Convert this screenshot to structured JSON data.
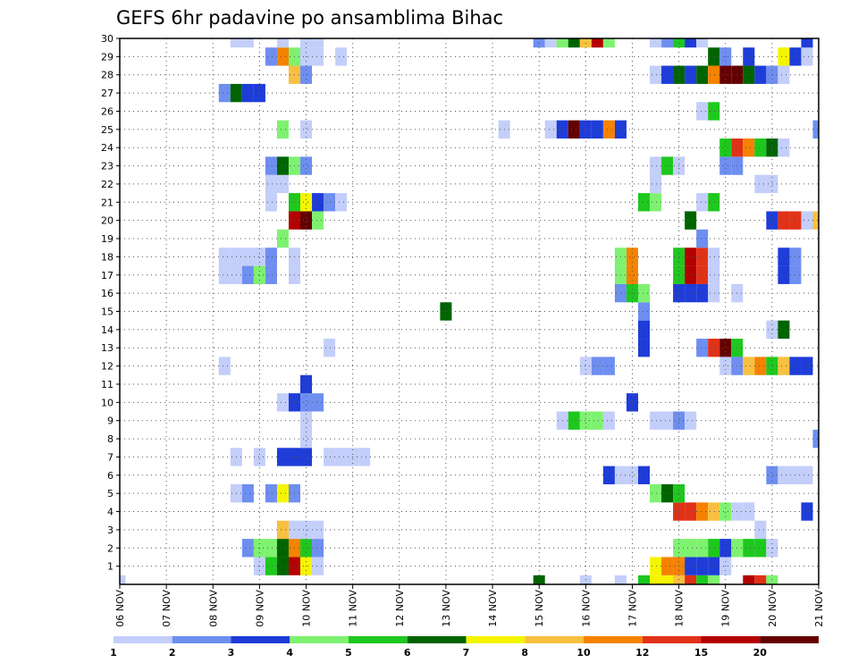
{
  "chart_data": {
    "type": "heatmap",
    "title": "GEFS 6hr padavine po ansamblima Bihac",
    "x_ticks": [
      "06 NOV",
      "07 NOV",
      "08 NOV",
      "09 NOV",
      "10 NOV",
      "11 NOV",
      "12 NOV",
      "13 NOV",
      "14 NOV",
      "15 NOV",
      "16 NOV",
      "17 NOV",
      "18 NOV",
      "19 NOV",
      "20 NOV",
      "21 NOV"
    ],
    "y_ticks": [
      1,
      2,
      3,
      4,
      5,
      6,
      7,
      8,
      9,
      10,
      11,
      12,
      13,
      14,
      15,
      16,
      17,
      18,
      19,
      20,
      21,
      22,
      23,
      24,
      25,
      26,
      27,
      28,
      29,
      30
    ],
    "x_range": [
      0,
      60
    ],
    "y_range": [
      0,
      30
    ],
    "steps_per_day": 4,
    "colorbar": {
      "colors": [
        "#c3cefa",
        "#6e8ef0",
        "#1e3cd8",
        "#7ef270",
        "#1ec81e",
        "#006400",
        "#f5f500",
        "#f8c040",
        "#f58200",
        "#e03218",
        "#b40000",
        "#640000"
      ],
      "labels": [
        "1",
        "2",
        "3",
        "4",
        "5",
        "6",
        "7",
        "8",
        "10",
        "12",
        "15",
        "20"
      ]
    },
    "series": [
      {
        "member": 0,
        "cells": [
          [
            0,
            1
          ],
          [
            36,
            6
          ],
          [
            40,
            1
          ],
          [
            43,
            1
          ],
          [
            45,
            5
          ],
          [
            46,
            7
          ],
          [
            47,
            7
          ],
          [
            48,
            8
          ],
          [
            49,
            10
          ],
          [
            50,
            5
          ],
          [
            51,
            4
          ],
          [
            54,
            11
          ],
          [
            55,
            10
          ],
          [
            56,
            4
          ]
        ]
      },
      {
        "member": 1,
        "cells": [
          [
            12,
            1
          ],
          [
            13,
            5
          ],
          [
            14,
            6
          ],
          [
            15,
            11
          ],
          [
            16,
            7
          ],
          [
            17,
            1
          ],
          [
            46,
            7
          ],
          [
            47,
            9
          ],
          [
            48,
            9
          ],
          [
            49,
            3
          ],
          [
            50,
            3
          ],
          [
            51,
            3
          ],
          [
            52,
            1
          ]
        ]
      },
      {
        "member": 2,
        "cells": [
          [
            11,
            2
          ],
          [
            12,
            4
          ],
          [
            13,
            4
          ],
          [
            14,
            6
          ],
          [
            15,
            9
          ],
          [
            16,
            5
          ],
          [
            17,
            2
          ],
          [
            48,
            4
          ],
          [
            49,
            4
          ],
          [
            50,
            4
          ],
          [
            51,
            5
          ],
          [
            52,
            3
          ],
          [
            53,
            4
          ],
          [
            54,
            5
          ],
          [
            55,
            5
          ],
          [
            56,
            1
          ]
        ]
      },
      {
        "member": 3,
        "cells": [
          [
            14,
            8
          ],
          [
            15,
            1
          ],
          [
            16,
            1
          ],
          [
            17,
            1
          ],
          [
            55,
            1
          ]
        ]
      },
      {
        "member": 4,
        "cells": [
          [
            48,
            10
          ],
          [
            49,
            10
          ],
          [
            50,
            9
          ],
          [
            51,
            8
          ],
          [
            52,
            4
          ],
          [
            53,
            1
          ],
          [
            54,
            1
          ],
          [
            59,
            3
          ]
        ]
      },
      {
        "member": 5,
        "cells": [
          [
            10,
            1
          ],
          [
            11,
            2
          ],
          [
            13,
            2
          ],
          [
            14,
            7
          ],
          [
            15,
            2
          ],
          [
            46,
            4
          ],
          [
            47,
            6
          ],
          [
            48,
            5
          ]
        ]
      },
      {
        "member": 6,
        "cells": [
          [
            42,
            3
          ],
          [
            43,
            1
          ],
          [
            44,
            1
          ],
          [
            45,
            3
          ],
          [
            56,
            2
          ],
          [
            57,
            1
          ],
          [
            58,
            1
          ],
          [
            59,
            1
          ]
        ]
      },
      {
        "member": 7,
        "cells": [
          [
            10,
            1
          ],
          [
            12,
            1
          ],
          [
            14,
            3
          ],
          [
            15,
            3
          ],
          [
            16,
            3
          ],
          [
            18,
            1
          ],
          [
            19,
            1
          ],
          [
            20,
            1
          ],
          [
            21,
            1
          ]
        ]
      },
      {
        "member": 8,
        "cells": [
          [
            16,
            1
          ],
          [
            60,
            2
          ]
        ]
      },
      {
        "member": 9,
        "cells": [
          [
            16,
            1
          ],
          [
            38,
            1
          ],
          [
            39,
            5
          ],
          [
            40,
            4
          ],
          [
            41,
            4
          ],
          [
            42,
            1
          ],
          [
            46,
            1
          ],
          [
            47,
            1
          ],
          [
            48,
            2
          ],
          [
            49,
            1
          ]
        ]
      },
      {
        "member": 10,
        "cells": [
          [
            14,
            1
          ],
          [
            15,
            3
          ],
          [
            16,
            2
          ],
          [
            17,
            2
          ],
          [
            44,
            3
          ]
        ]
      },
      {
        "member": 11,
        "cells": [
          [
            16,
            3
          ]
        ]
      },
      {
        "member": 12,
        "cells": [
          [
            9,
            1
          ],
          [
            40,
            1
          ],
          [
            41,
            2
          ],
          [
            42,
            2
          ],
          [
            52,
            1
          ],
          [
            53,
            2
          ],
          [
            54,
            8
          ],
          [
            55,
            9
          ],
          [
            56,
            5
          ],
          [
            57,
            8
          ],
          [
            58,
            3
          ],
          [
            59,
            3
          ]
        ]
      },
      {
        "member": 13,
        "cells": [
          [
            18,
            1
          ],
          [
            45,
            3
          ],
          [
            50,
            2
          ],
          [
            51,
            10
          ],
          [
            52,
            12
          ],
          [
            53,
            5
          ]
        ]
      },
      {
        "member": 14,
        "cells": [
          [
            45,
            3
          ],
          [
            56,
            1
          ],
          [
            57,
            6
          ]
        ]
      },
      {
        "member": 15,
        "cells": [
          [
            28,
            6
          ],
          [
            45,
            2
          ]
        ]
      },
      {
        "member": 16,
        "cells": [
          [
            43,
            2
          ],
          [
            44,
            5
          ],
          [
            45,
            4
          ],
          [
            48,
            3
          ],
          [
            49,
            3
          ],
          [
            50,
            3
          ],
          [
            51,
            1
          ],
          [
            53,
            1
          ]
        ]
      },
      {
        "member": 17,
        "cells": [
          [
            9,
            1
          ],
          [
            10,
            1
          ],
          [
            11,
            2
          ],
          [
            12,
            4
          ],
          [
            13,
            2
          ],
          [
            15,
            1
          ],
          [
            43,
            4
          ],
          [
            44,
            9
          ],
          [
            48,
            5
          ],
          [
            49,
            11
          ],
          [
            50,
            10
          ],
          [
            51,
            1
          ],
          [
            57,
            3
          ],
          [
            58,
            2
          ]
        ]
      },
      {
        "member": 18,
        "cells": [
          [
            9,
            1
          ],
          [
            10,
            1
          ],
          [
            11,
            1
          ],
          [
            12,
            1
          ],
          [
            13,
            2
          ],
          [
            15,
            1
          ],
          [
            43,
            4
          ],
          [
            44,
            9
          ],
          [
            48,
            5
          ],
          [
            49,
            11
          ],
          [
            50,
            10
          ],
          [
            51,
            1
          ],
          [
            57,
            3
          ],
          [
            58,
            2
          ]
        ]
      },
      {
        "member": 19,
        "cells": [
          [
            14,
            4
          ],
          [
            50,
            2
          ]
        ]
      },
      {
        "member": 20,
        "cells": [
          [
            15,
            11
          ],
          [
            16,
            12
          ],
          [
            17,
            4
          ],
          [
            49,
            6
          ],
          [
            56,
            3
          ],
          [
            57,
            10
          ],
          [
            58,
            10
          ],
          [
            59,
            1
          ],
          [
            60,
            8
          ]
        ]
      },
      {
        "member": 21,
        "cells": [
          [
            13,
            1
          ],
          [
            15,
            5
          ],
          [
            16,
            7
          ],
          [
            17,
            3
          ],
          [
            18,
            2
          ],
          [
            19,
            1
          ],
          [
            45,
            5
          ],
          [
            46,
            4
          ],
          [
            50,
            1
          ],
          [
            51,
            5
          ]
        ]
      },
      {
        "member": 22,
        "cells": [
          [
            13,
            1
          ],
          [
            14,
            1
          ],
          [
            46,
            1
          ],
          [
            55,
            1
          ],
          [
            56,
            1
          ]
        ]
      },
      {
        "member": 23,
        "cells": [
          [
            13,
            2
          ],
          [
            14,
            6
          ],
          [
            15,
            4
          ],
          [
            16,
            2
          ],
          [
            46,
            1
          ],
          [
            47,
            5
          ],
          [
            48,
            1
          ],
          [
            52,
            2
          ],
          [
            53,
            2
          ]
        ]
      },
      {
        "member": 24,
        "cells": [
          [
            52,
            5
          ],
          [
            53,
            10
          ],
          [
            54,
            9
          ],
          [
            55,
            5
          ],
          [
            56,
            6
          ],
          [
            57,
            1
          ]
        ]
      },
      {
        "member": 25,
        "cells": [
          [
            14,
            4
          ],
          [
            16,
            1
          ],
          [
            33,
            1
          ],
          [
            37,
            1
          ],
          [
            38,
            3
          ],
          [
            39,
            12
          ],
          [
            40,
            3
          ],
          [
            41,
            3
          ],
          [
            42,
            9
          ],
          [
            43,
            3
          ],
          [
            60,
            2
          ]
        ]
      },
      {
        "member": 26,
        "cells": [
          [
            50,
            1
          ],
          [
            51,
            5
          ]
        ]
      },
      {
        "member": 27,
        "cells": [
          [
            9,
            2
          ],
          [
            10,
            6
          ],
          [
            11,
            3
          ],
          [
            12,
            3
          ]
        ]
      },
      {
        "member": 28,
        "cells": [
          [
            15,
            8
          ],
          [
            16,
            2
          ],
          [
            46,
            1
          ],
          [
            47,
            3
          ],
          [
            48,
            6
          ],
          [
            49,
            3
          ],
          [
            50,
            6
          ],
          [
            51,
            9
          ],
          [
            52,
            12
          ],
          [
            53,
            12
          ],
          [
            54,
            6
          ],
          [
            55,
            3
          ],
          [
            56,
            2
          ],
          [
            57,
            1
          ]
        ]
      },
      {
        "member": 29,
        "cells": [
          [
            13,
            2
          ],
          [
            14,
            9
          ],
          [
            15,
            4
          ],
          [
            16,
            1
          ],
          [
            17,
            1
          ],
          [
            19,
            1
          ],
          [
            51,
            6
          ],
          [
            52,
            2
          ],
          [
            54,
            3
          ],
          [
            57,
            7
          ],
          [
            58,
            3
          ],
          [
            59,
            1
          ]
        ]
      },
      {
        "member": 30,
        "cells": [
          [
            10,
            1
          ],
          [
            11,
            1
          ],
          [
            14,
            1
          ],
          [
            16,
            1
          ],
          [
            17,
            1
          ],
          [
            36,
            2
          ],
          [
            37,
            1
          ],
          [
            38,
            4
          ],
          [
            39,
            6
          ],
          [
            40,
            8
          ],
          [
            41,
            11
          ],
          [
            42,
            4
          ],
          [
            46,
            1
          ],
          [
            47,
            2
          ],
          [
            48,
            5
          ],
          [
            49,
            3
          ],
          [
            50,
            1
          ],
          [
            59,
            3
          ]
        ]
      }
    ]
  }
}
